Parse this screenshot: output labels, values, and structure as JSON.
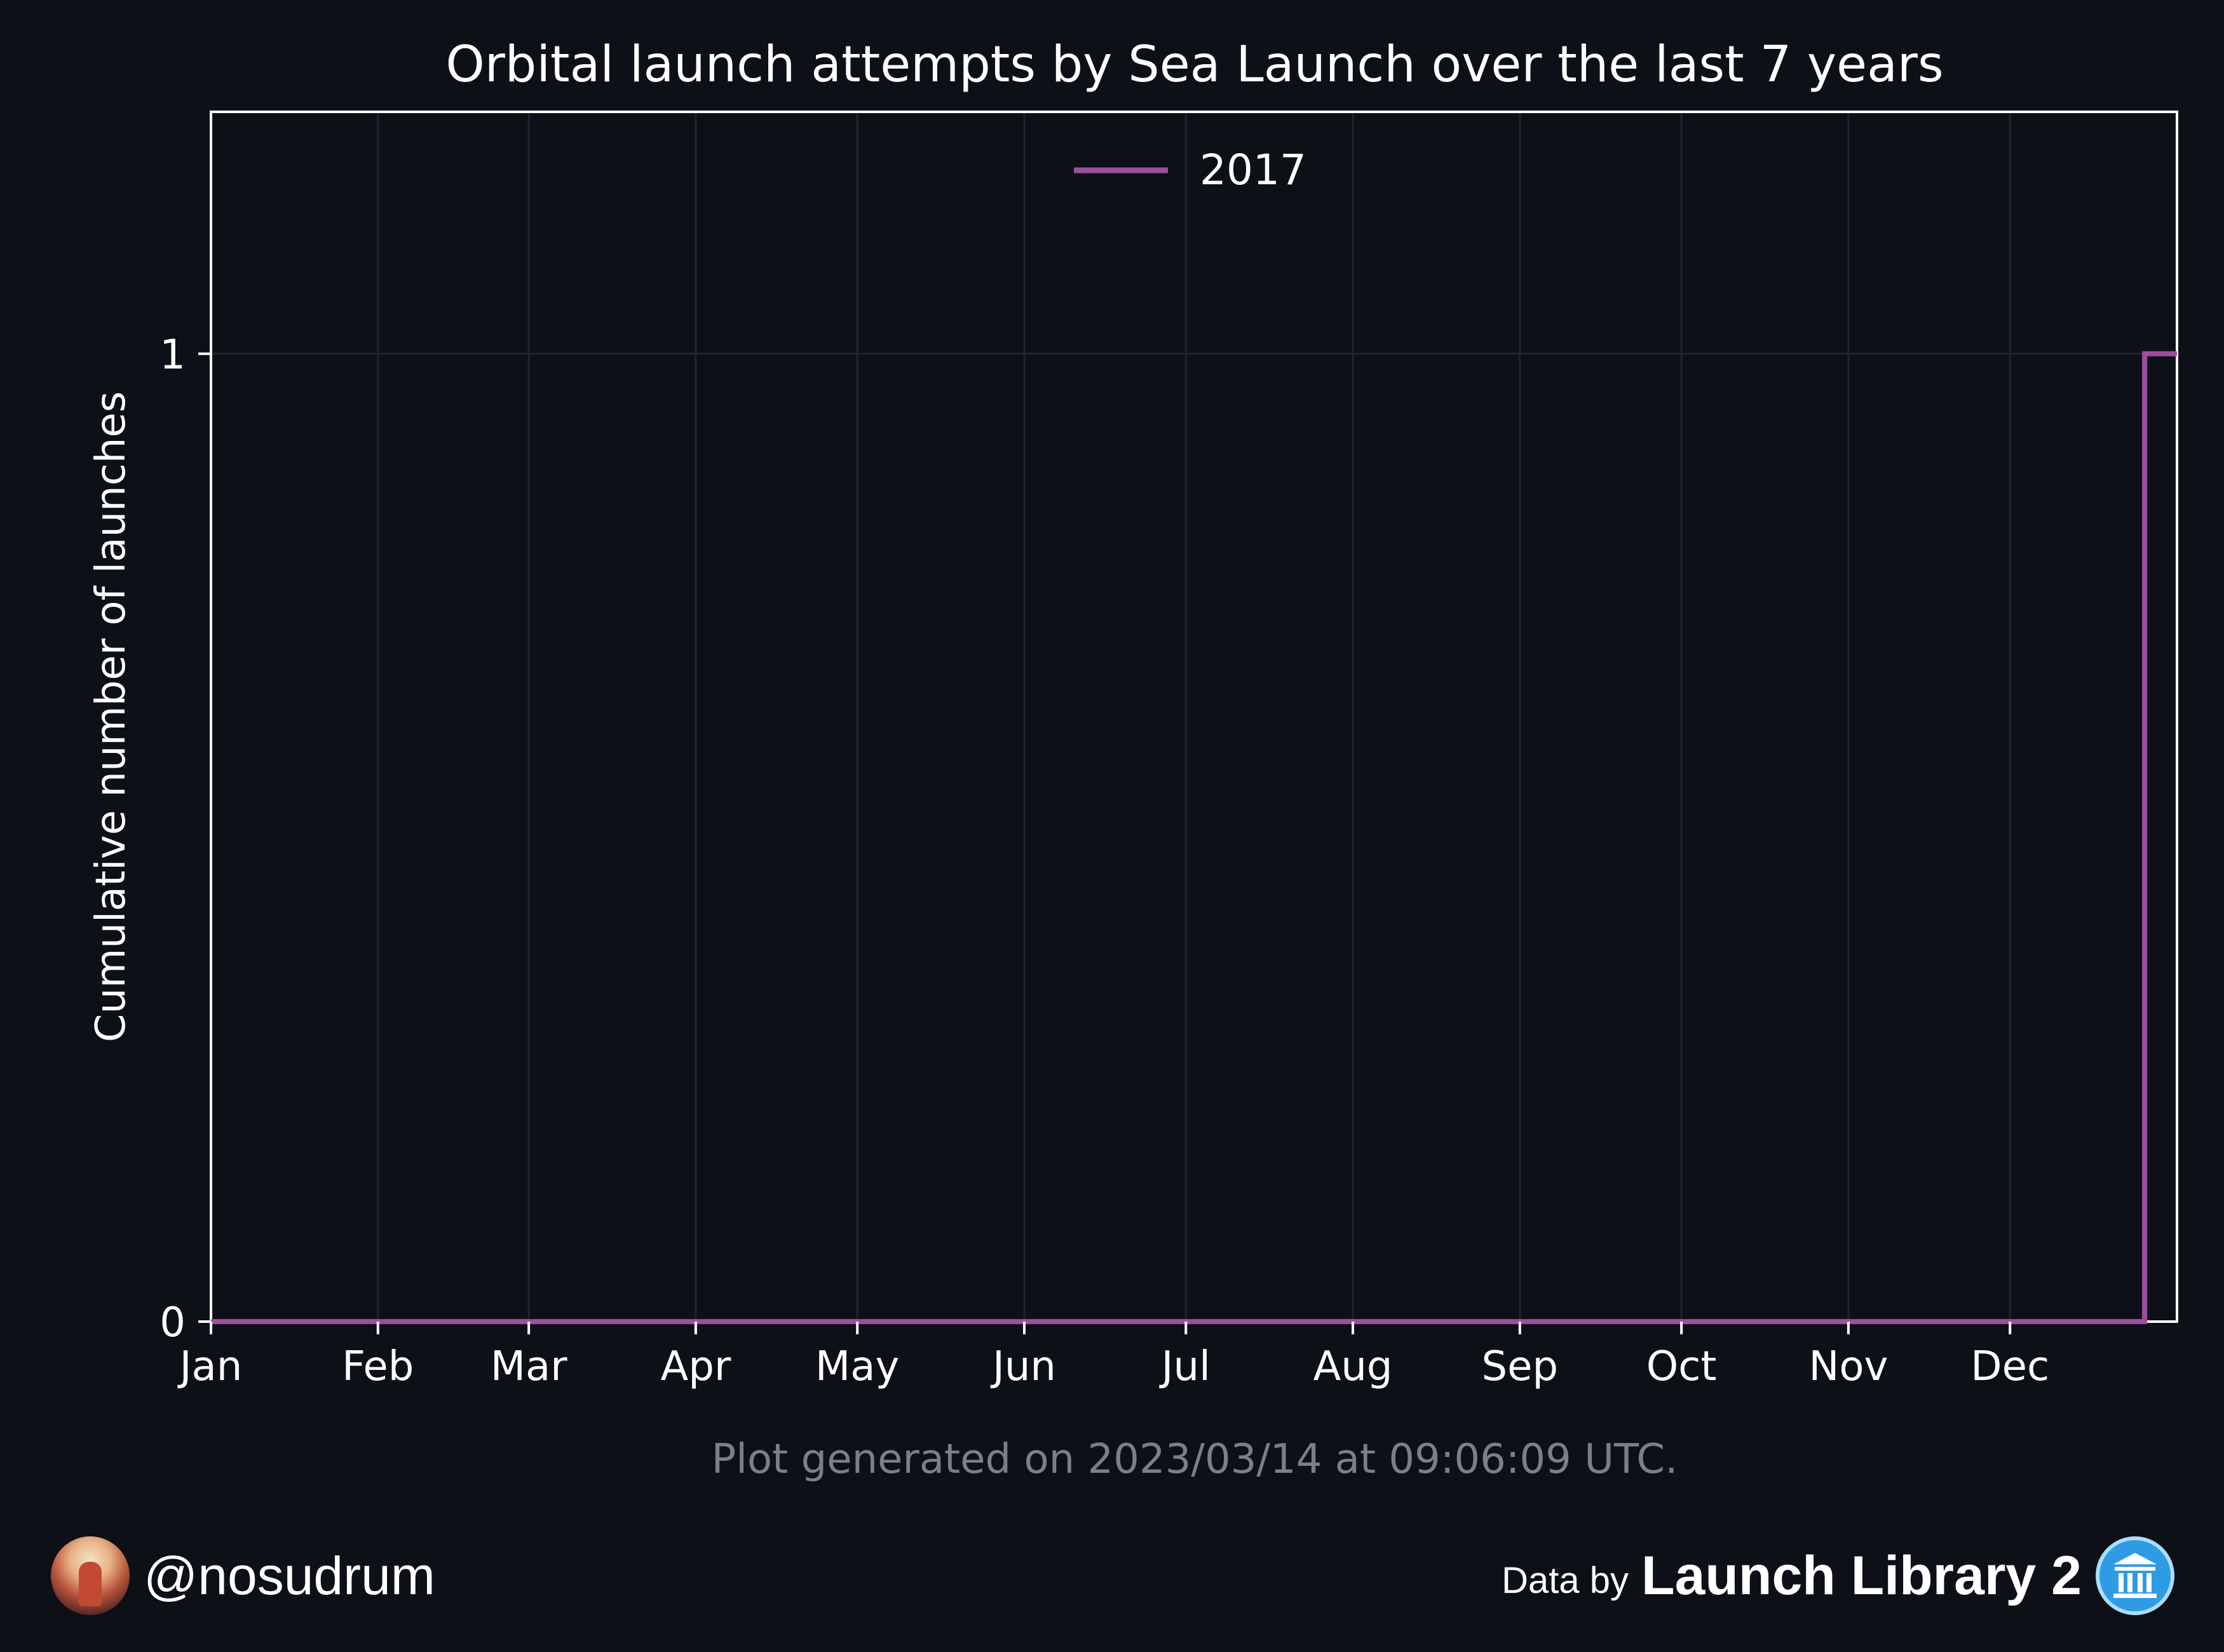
{
  "chart_data": {
    "type": "line",
    "drawstyle": "steps-post",
    "title": "Orbital launch attempts by Sea Launch over the last 7 years",
    "xlabel": "",
    "ylabel": "Cumulative number of launches",
    "x_ticks": [
      "Jan",
      "Feb",
      "Mar",
      "Apr",
      "May",
      "Jun",
      "Jul",
      "Aug",
      "Sep",
      "Oct",
      "Nov",
      "Dec"
    ],
    "y_ticks": [
      0,
      1
    ],
    "xlim": [
      1,
      366
    ],
    "ylim": [
      0,
      1.25
    ],
    "grid": true,
    "legend_position": "top-center",
    "series": [
      {
        "name": "2017",
        "color": "#9b4f9e",
        "x_day_of_year": [
          1,
          360,
          366
        ],
        "y": [
          0,
          1,
          1
        ]
      }
    ]
  },
  "footer": {
    "generated_note": "Plot generated on 2023/03/14 at 09:06:09 UTC.",
    "handle": "@nosudrum",
    "data_by": "Data by",
    "source": "Launch Library 2"
  },
  "colors": {
    "background": "#0d1017",
    "grid": "#1f2530",
    "axes": "#ffffff",
    "note": "#7c7f86"
  }
}
